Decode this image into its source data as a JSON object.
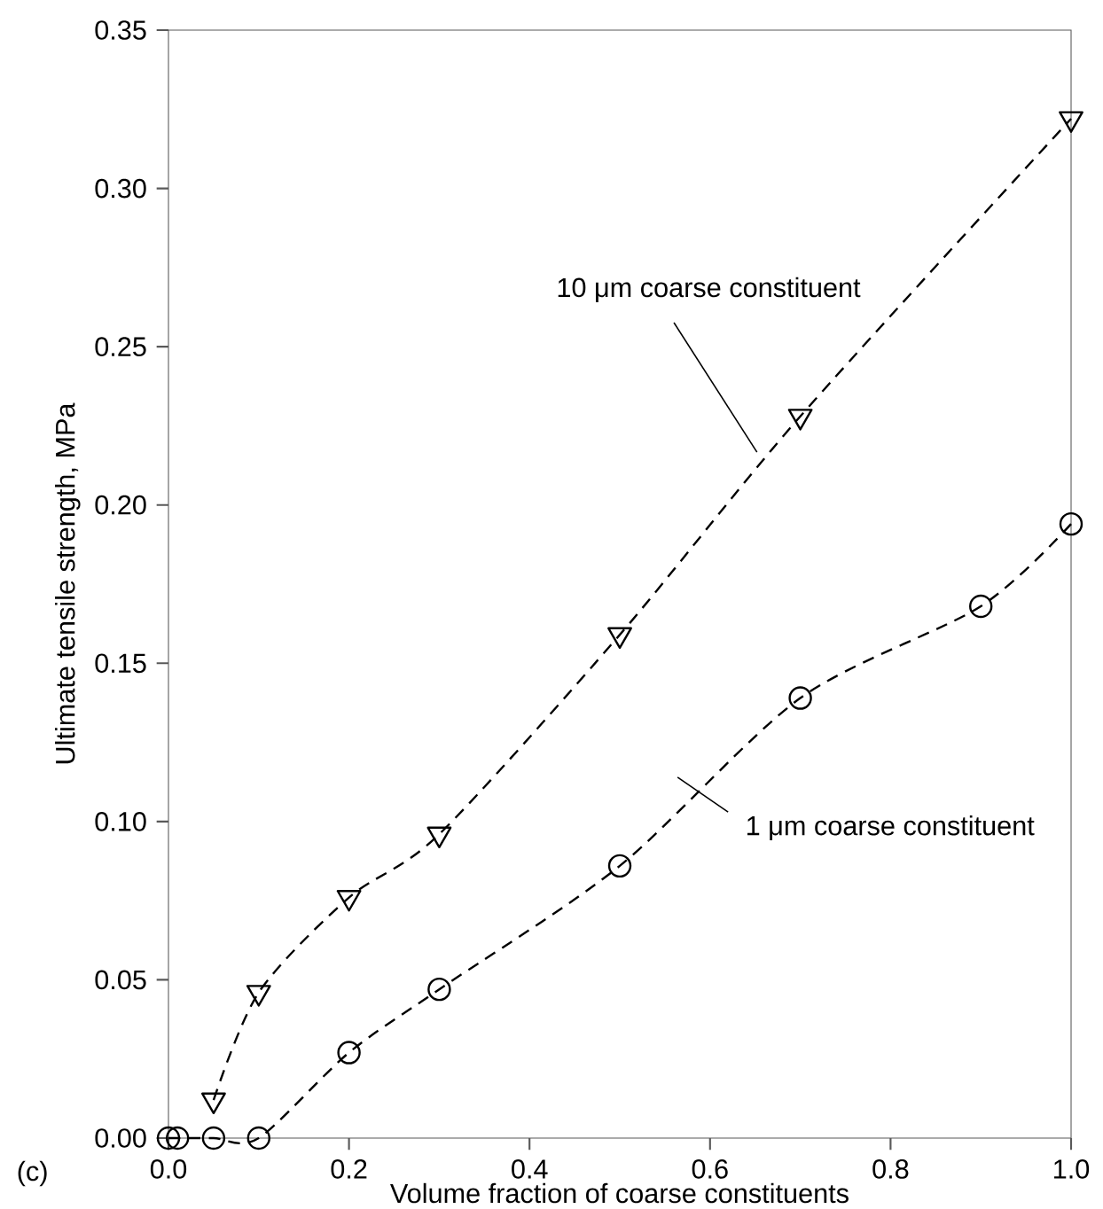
{
  "chart_data": {
    "type": "line",
    "xlabel": "Volume fraction of coarse constituents",
    "ylabel": "Ultimate tensile strength, MPa",
    "annotations": [
      "(c)"
    ],
    "series": [
      {
        "name": "10 μm coarse constituent",
        "color": "#000000",
        "marker": "triangle",
        "x": [
          0.05,
          0.1,
          0.2,
          0.3,
          0.5,
          0.7,
          1.0
        ],
        "values": [
          0.012,
          0.046,
          0.076,
          0.096,
          0.159,
          0.228,
          0.322
        ]
      },
      {
        "name": "1 μm coarse constituent",
        "color": "#000000",
        "marker": "circle",
        "x": [
          0.0,
          0.01,
          0.05,
          0.1,
          0.2,
          0.3,
          0.5,
          0.7,
          0.9,
          1.0
        ],
        "values": [
          0.0,
          0.0,
          0.0,
          0.0,
          0.027,
          0.047,
          0.086,
          0.139,
          0.168,
          0.194
        ]
      }
    ],
    "line_style": "dashed",
    "grid": false,
    "legend": false,
    "xlim": [
      0,
      1.0
    ],
    "ylim": [
      0,
      0.35
    ],
    "xticks": [
      {
        "value": 0,
        "label": "0.0"
      },
      {
        "value": 0.2,
        "label": "0.2"
      },
      {
        "value": 0.4,
        "label": "0.4"
      },
      {
        "value": 0.6,
        "label": "0.6"
      },
      {
        "value": 0.8,
        "label": "0.8"
      },
      {
        "value": 1.0,
        "label": "1.0"
      }
    ],
    "yticks": [
      {
        "value": 0,
        "label": "0.00"
      },
      {
        "value": 0.05,
        "label": "0.05"
      },
      {
        "value": 0.1,
        "label": "0.10"
      },
      {
        "value": 0.15,
        "label": "0.15"
      },
      {
        "value": 0.2,
        "label": "0.20"
      },
      {
        "value": 0.25,
        "label": "0.25"
      },
      {
        "value": 0.3,
        "label": "0.30"
      },
      {
        "value": 0.35,
        "label": "0.35"
      }
    ]
  }
}
